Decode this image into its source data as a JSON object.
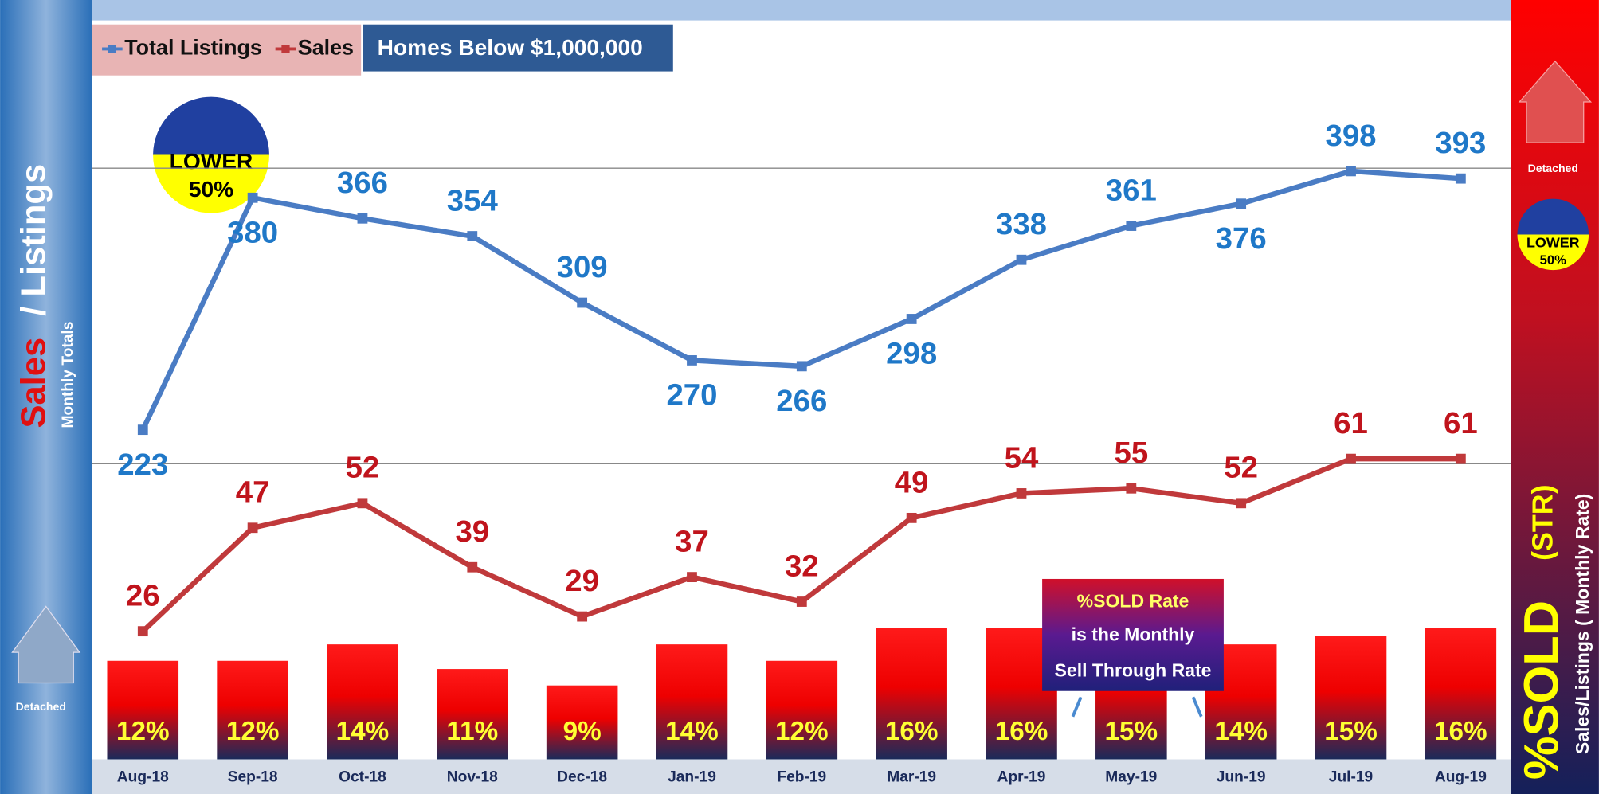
{
  "chart_data": {
    "type": "line",
    "subtitle": "Homes Below $1,000,000",
    "categories": [
      "Aug-18",
      "Sep-18",
      "Oct-18",
      "Nov-18",
      "Dec-18",
      "Jan-19",
      "Feb-19",
      "Mar-19",
      "Apr-19",
      "May-19",
      "Jun-19",
      "Jul-19",
      "Aug-19"
    ],
    "series": [
      {
        "name": "Total Listings",
        "color": "#4a7cc4",
        "label_color": "#1f78c8",
        "values": [
          223,
          380,
          366,
          354,
          309,
          270,
          266,
          298,
          338,
          361,
          376,
          398,
          393
        ]
      },
      {
        "name": "Sales",
        "color": "#c0393b",
        "label_color": "#c0141c",
        "axis": "y2",
        "values": [
          26,
          47,
          52,
          39,
          29,
          37,
          32,
          49,
          54,
          55,
          52,
          61,
          61
        ]
      }
    ],
    "bars": {
      "name": "%SOLD",
      "axis": "y3",
      "values": [
        12,
        12,
        14,
        11,
        9,
        14,
        12,
        16,
        16,
        15,
        14,
        15,
        16
      ],
      "value_labels": [
        "12%",
        "12%",
        "14%",
        "11%",
        "9%",
        "14%",
        "12%",
        "16%",
        "16%",
        "15%",
        "14%",
        "15%",
        "16%"
      ]
    },
    "ylim": [
      0,
      500
    ],
    "yticks": [
      200,
      400
    ],
    "grid": true,
    "y2lim": [
      0,
      150
    ],
    "y3lim": [
      0,
      90
    ],
    "y_label": {
      "sales": "Sales",
      "listings": "/ Listings",
      "sub": "Monthly Totals"
    },
    "y2_label": {
      "main": "%SOLD",
      "paren": "(STR)",
      "sub": "Sales/Listings ( Monthly Rate)"
    },
    "badge": [
      "LOWER",
      "50%"
    ],
    "icon_label": "Detached",
    "callout": [
      "%SOLD Rate",
      "is the Monthly",
      "Sell Through Rate"
    ]
  }
}
